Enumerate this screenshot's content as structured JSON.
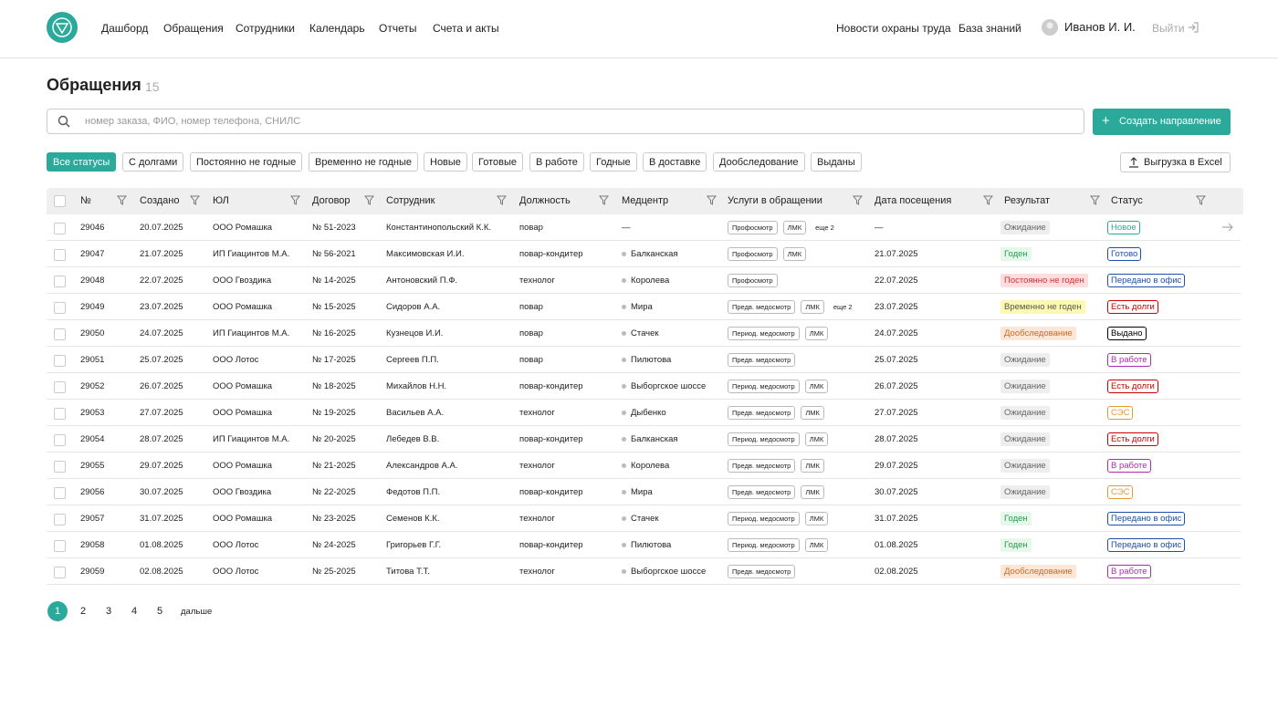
{
  "nav": {
    "items": [
      "Дашборд",
      "Обращения",
      "Сотрудники",
      "Календарь",
      "Отчеты",
      "Счета и акты"
    ],
    "right": [
      "Новости охраны труда",
      "База знаний"
    ],
    "user": "Иванов И. И.",
    "logout": "Выйти"
  },
  "page": {
    "title": "Обращения",
    "count": 15,
    "search_placeholder": "номер заказа, ФИО, номер телефона, СНИЛС",
    "create_button": "Создать направление",
    "filters": [
      "Все статусы",
      "С долгами",
      "Постоянно не годные",
      "Временно не годные",
      "Новые",
      "Готовые",
      "В работе",
      "Годные",
      "В доставке",
      "Дообследование",
      "Выданы"
    ],
    "export_button": "Выгрузка в Excel"
  },
  "table": {
    "columns": [
      "№",
      "Создано",
      "ЮЛ",
      "Договор",
      "Сотрудник",
      "Должность",
      "Медцентр",
      "Услуги в обращении",
      "Дата посещения",
      "Результат",
      "Статус"
    ],
    "rows": [
      {
        "id": 29046,
        "created": "20.07.2025",
        "org": "ООО Ромашка",
        "contract": "№ 51-2023",
        "employee": "Константинопольский К.К.",
        "position": "повар",
        "center": "—",
        "services": [
          "Профосмотр",
          "ЛМК"
        ],
        "more": "еще 2",
        "visit": "—",
        "result": "Ожидание",
        "status": "Новое"
      },
      {
        "id": 29047,
        "created": "21.07.2025",
        "org": "ИП Гиацинтов М.А.",
        "contract": "№ 56-2021",
        "employee": "Максимовская И.И.",
        "position": "повар-кондитер",
        "center": "Балканская",
        "services": [
          "Профосмотр",
          "ЛМК"
        ],
        "visit": "21.07.2025",
        "result": "Годен",
        "status": "Готово"
      },
      {
        "id": 29048,
        "created": "22.07.2025",
        "org": "ООО Гвоздика",
        "contract": "№ 14-2025",
        "employee": "Антоновский П.Ф.",
        "position": "технолог",
        "center": "Королева",
        "services": [
          "Профосмотр"
        ],
        "visit": "22.07.2025",
        "result": "Постоянно не годен",
        "status": "Передано в офис"
      },
      {
        "id": 29049,
        "created": "23.07.2025",
        "org": "ООО Ромашка",
        "contract": "№ 15-2025",
        "employee": "Сидоров А.А.",
        "position": "повар",
        "center": "Мира",
        "services": [
          "Предв. медосмотр",
          "ЛМК"
        ],
        "more": "еще 2",
        "visit": "23.07.2025",
        "result": "Временно не годен",
        "status": "Есть долги"
      },
      {
        "id": 29050,
        "created": "24.07.2025",
        "org": "ИП Гиацинтов М.А.",
        "contract": "№ 16-2025",
        "employee": "Кузнецов И.И.",
        "position": "повар",
        "center": "Стачек",
        "services": [
          "Период. медосмотр",
          "ЛМК"
        ],
        "visit": "24.07.2025",
        "result": "Дообследование",
        "status": "Выдано"
      },
      {
        "id": 29051,
        "created": "25.07.2025",
        "org": "ООО Лотос",
        "contract": "№ 17-2025",
        "employee": "Сергеев П.П.",
        "position": "повар",
        "center": "Пилютова",
        "services": [
          "Предв. медосмотр"
        ],
        "visit": "25.07.2025",
        "result": "Ожидание",
        "status": "В работе"
      },
      {
        "id": 29052,
        "created": "26.07.2025",
        "org": "ООО Ромашка",
        "contract": "№ 18-2025",
        "employee": "Михайлов Н.Н.",
        "position": "повар-кондитер",
        "center": "Выборгское шоссе",
        "services": [
          "Период. медосмотр",
          "ЛМК"
        ],
        "visit": "26.07.2025",
        "result": "Ожидание",
        "status": "Есть долги"
      },
      {
        "id": 29053,
        "created": "27.07.2025",
        "org": "ООО Ромашка",
        "contract": "№ 19-2025",
        "employee": "Васильев А.А.",
        "position": "технолог",
        "center": "Дыбенко",
        "services": [
          "Предв. медосмотр",
          "ЛМК"
        ],
        "visit": "27.07.2025",
        "result": "Ожидание",
        "status": "СЭС"
      },
      {
        "id": 29054,
        "created": "28.07.2025",
        "org": "ИП Гиацинтов М.А.",
        "contract": "№ 20-2025",
        "employee": "Лебедев В.В.",
        "position": "повар-кондитер",
        "center": "Балканская",
        "services": [
          "Период. медосмотр",
          "ЛМК"
        ],
        "visit": "28.07.2025",
        "result": "Ожидание",
        "status": "Есть долги"
      },
      {
        "id": 29055,
        "created": "29.07.2025",
        "org": "ООО Ромашка",
        "contract": "№ 21-2025",
        "employee": "Александров А.А.",
        "position": "технолог",
        "center": "Королева",
        "services": [
          "Предв. медосмотр",
          "ЛМК"
        ],
        "visit": "29.07.2025",
        "result": "Ожидание",
        "status": "В работе"
      },
      {
        "id": 29056,
        "created": "30.07.2025",
        "org": "ООО Гвоздика",
        "contract": "№ 22-2025",
        "employee": "Федотов П.П.",
        "position": "повар-кондитер",
        "center": "Мира",
        "services": [
          "Предв. медосмотр",
          "ЛМК"
        ],
        "visit": "30.07.2025",
        "result": "Ожидание",
        "status": "СЭС"
      },
      {
        "id": 29057,
        "created": "31.07.2025",
        "org": "ООО Ромашка",
        "contract": "№ 23-2025",
        "employee": "Семенов К.К.",
        "position": "технолог",
        "center": "Стачек",
        "services": [
          "Период. медосмотр",
          "ЛМК"
        ],
        "visit": "31.07.2025",
        "result": "Годен",
        "status": "Передано в офис"
      },
      {
        "id": 29058,
        "created": "01.08.2025",
        "org": "ООО Лотос",
        "contract": "№ 24-2025",
        "employee": "Григорьев Г.Г.",
        "position": "повар-кондитер",
        "center": "Пилютова",
        "services": [
          "Период. медосмотр",
          "ЛМК"
        ],
        "visit": "01.08.2025",
        "result": "Годен",
        "status": "Передано в офис"
      },
      {
        "id": 29059,
        "created": "02.08.2025",
        "org": "ООО Лотос",
        "contract": "№ 25-2025",
        "employee": "Титова Т.Т.",
        "position": "технолог",
        "center": "Выборгское шоссе",
        "services": [
          "Предв. медосмотр"
        ],
        "visit": "02.08.2025",
        "result": "Дообследование",
        "status": "В работе"
      }
    ]
  },
  "pagination": {
    "pages": [
      1,
      2,
      3,
      4,
      5
    ],
    "next": "дальше"
  }
}
